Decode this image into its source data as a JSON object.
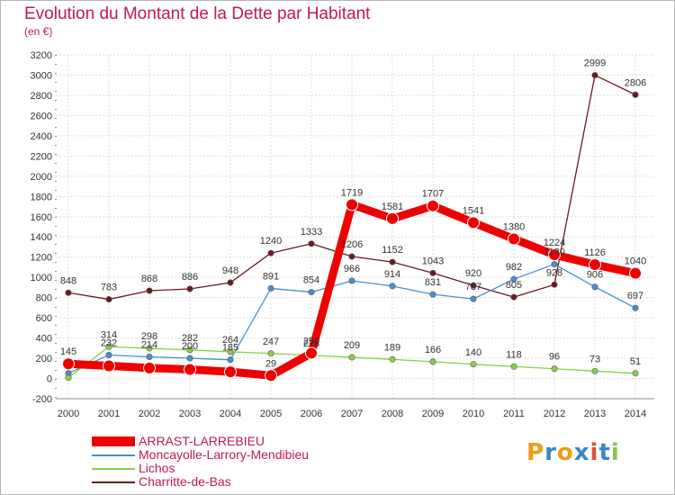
{
  "chart_data": {
    "type": "line",
    "title": "Evolution du Montant de la Dette par Habitant",
    "subtitle": "(en €)",
    "x": [
      "2000",
      "2001",
      "2002",
      "2003",
      "2004",
      "2005",
      "2006",
      "2007",
      "2008",
      "2009",
      "2010",
      "2011",
      "2012",
      "2013",
      "2014"
    ],
    "ylim": [
      -200,
      3200
    ],
    "yticks": [
      -200,
      0,
      200,
      400,
      600,
      800,
      1000,
      1200,
      1400,
      1600,
      1800,
      2000,
      2200,
      2400,
      2600,
      2800,
      3000,
      3200
    ],
    "grid": true,
    "legend_position": "bottom-left",
    "series": [
      {
        "name": "ARRAST-LARREBIEU",
        "color": "#ee0000",
        "values": [
          145,
          125,
          104,
          89,
          66,
          29,
          250,
          1719,
          1581,
          1707,
          1541,
          1380,
          1224,
          1126,
          1040
        ]
      },
      {
        "name": "Moncayolle-Larrory-Mendibieu",
        "color": "#4a90d0",
        "values": [
          52,
          232,
          214,
          200,
          185,
          891,
          854,
          966,
          914,
          831,
          787,
          982,
          1130,
          906,
          697
        ]
      },
      {
        "name": "Lichos",
        "color": "#88d048",
        "values": [
          8,
          314,
          298,
          282,
          264,
          247,
          228,
          209,
          189,
          166,
          140,
          118,
          96,
          73,
          51
        ]
      },
      {
        "name": "Charritte-de-Bas",
        "color": "#6b1a22",
        "values": [
          848,
          783,
          868,
          886,
          948,
          1240,
          1333,
          1206,
          1152,
          1043,
          920,
          805,
          928,
          2999,
          2806
        ]
      }
    ],
    "data_labels": [
      {
        "series": 0,
        "labels": [
          "145",
          "",
          "",
          "",
          "",
          "29",
          "250",
          "1719",
          "1581",
          "1707",
          "1541",
          "1380",
          "1224",
          "1126",
          "1040"
        ]
      },
      {
        "series": 1,
        "labels": [
          "",
          "232",
          "214",
          "200",
          "185",
          "891",
          "854",
          "966",
          "914",
          "831",
          "787",
          "982",
          "1130",
          "906",
          "697"
        ]
      },
      {
        "series": 2,
        "labels": [
          "",
          "314",
          "298",
          "282",
          "264",
          "247",
          "228",
          "209",
          "189",
          "166",
          "140",
          "118",
          "96",
          "73",
          "51"
        ]
      },
      {
        "series": 3,
        "labels": [
          "848",
          "783",
          "868",
          "886",
          "948",
          "1240",
          "1333",
          "1206",
          "1152",
          "1043",
          "920",
          "805",
          "928",
          "2999",
          "2806"
        ]
      }
    ]
  },
  "logo": {
    "letters": [
      "P",
      "r",
      "o",
      "x",
      "i",
      "t",
      "i"
    ],
    "colors": [
      "#f39c12",
      "#3a87c8",
      "#f39c12",
      "#3a87c8",
      "#e74c3c",
      "#3a87c8",
      "#8bc34a"
    ]
  }
}
